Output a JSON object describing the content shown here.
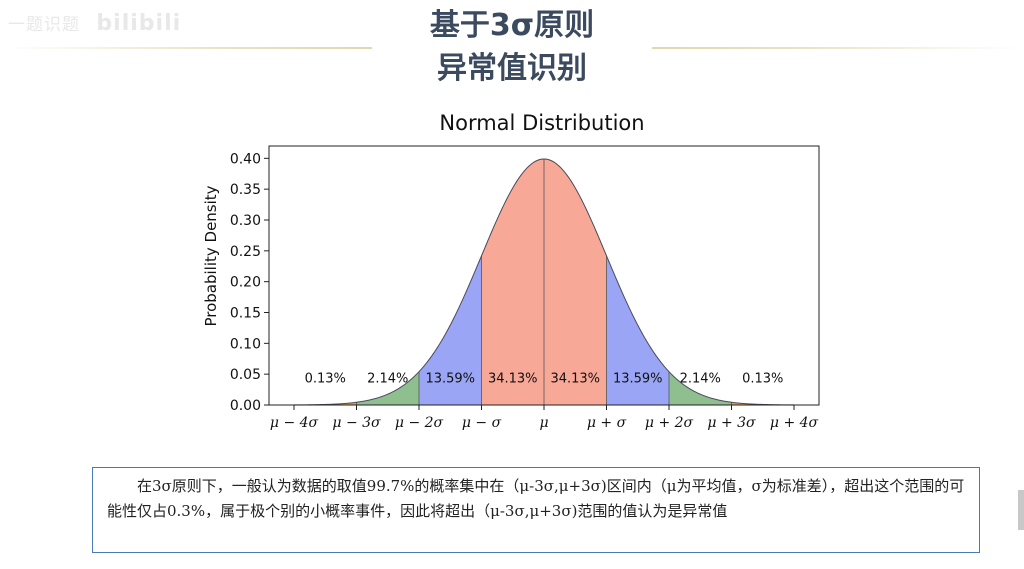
{
  "watermark": {
    "text": "一题识题",
    "logo": "bilibili"
  },
  "slide": {
    "title_line1": "基于3σ原则",
    "title_line2": "异常值识别",
    "note": "在3σ原则下，一般认为数据的取值99.7%的概率集中在（μ-3σ,μ+3σ)区间内（μ为平均值，σ为标准差），超出这个范围的可能性仅占0.3%，属于极个别的小概率事件，因此将超出（μ-3σ,μ+3σ)范围的值认为是异常值"
  },
  "chart_data": {
    "type": "area",
    "title": "Normal Distribution",
    "xlabel": "",
    "ylabel": "Probability Density",
    "xlim": [
      -4.4,
      4.4
    ],
    "ylim": [
      0.0,
      0.42
    ],
    "y_ticks": [
      "0.00",
      "0.05",
      "0.10",
      "0.15",
      "0.20",
      "0.25",
      "0.30",
      "0.35",
      "0.40"
    ],
    "x_ticks": [
      {
        "x": -4,
        "label": "μ − 4σ"
      },
      {
        "x": -3,
        "label": "μ − 3σ"
      },
      {
        "x": -2,
        "label": "μ − 2σ"
      },
      {
        "x": -1,
        "label": "μ − σ"
      },
      {
        "x": 0,
        "label": "μ"
      },
      {
        "x": 1,
        "label": "μ + σ"
      },
      {
        "x": 2,
        "label": "μ + 2σ"
      },
      {
        "x": 3,
        "label": "μ + 3σ"
      },
      {
        "x": 4,
        "label": "μ + 4σ"
      }
    ],
    "regions": [
      {
        "from": -4,
        "to": -3,
        "color": "#f0a050"
      },
      {
        "from": -3,
        "to": -2,
        "color": "#8fbf8f"
      },
      {
        "from": -2,
        "to": -1,
        "color": "#9aa6f5"
      },
      {
        "from": -1,
        "to": 0,
        "color": "#f8a896"
      },
      {
        "from": 0,
        "to": 1,
        "color": "#f8a896"
      },
      {
        "from": 1,
        "to": 2,
        "color": "#9aa6f5"
      },
      {
        "from": 2,
        "to": 3,
        "color": "#8fbf8f"
      },
      {
        "from": 3,
        "to": 4,
        "color": "#f0a050"
      }
    ],
    "annotations": [
      {
        "x": -3.5,
        "y": 0.045,
        "text": "0.13%"
      },
      {
        "x": -2.5,
        "y": 0.045,
        "text": "2.14%"
      },
      {
        "x": -1.5,
        "y": 0.045,
        "text": "13.59%"
      },
      {
        "x": -0.5,
        "y": 0.045,
        "text": "34.13%"
      },
      {
        "x": 0.5,
        "y": 0.045,
        "text": "34.13%"
      },
      {
        "x": 1.5,
        "y": 0.045,
        "text": "13.59%"
      },
      {
        "x": 2.5,
        "y": 0.045,
        "text": "2.14%"
      },
      {
        "x": 3.5,
        "y": 0.045,
        "text": "0.13%"
      }
    ],
    "curve": {
      "mean": 0,
      "sd": 1,
      "peak": 0.3989
    },
    "grid": false
  }
}
